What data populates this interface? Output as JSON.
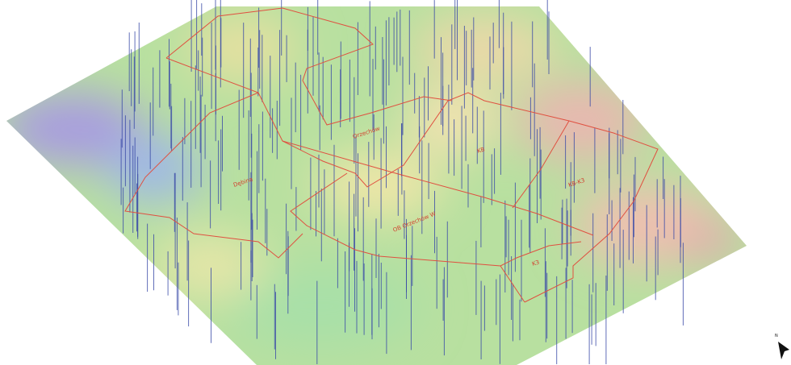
{
  "labels": [
    "Orzechów",
    "Dębina",
    "KB",
    "KB-K3",
    "OB Orzechów W",
    "K3"
  ],
  "north_arrow": {
    "label": "N"
  }
}
